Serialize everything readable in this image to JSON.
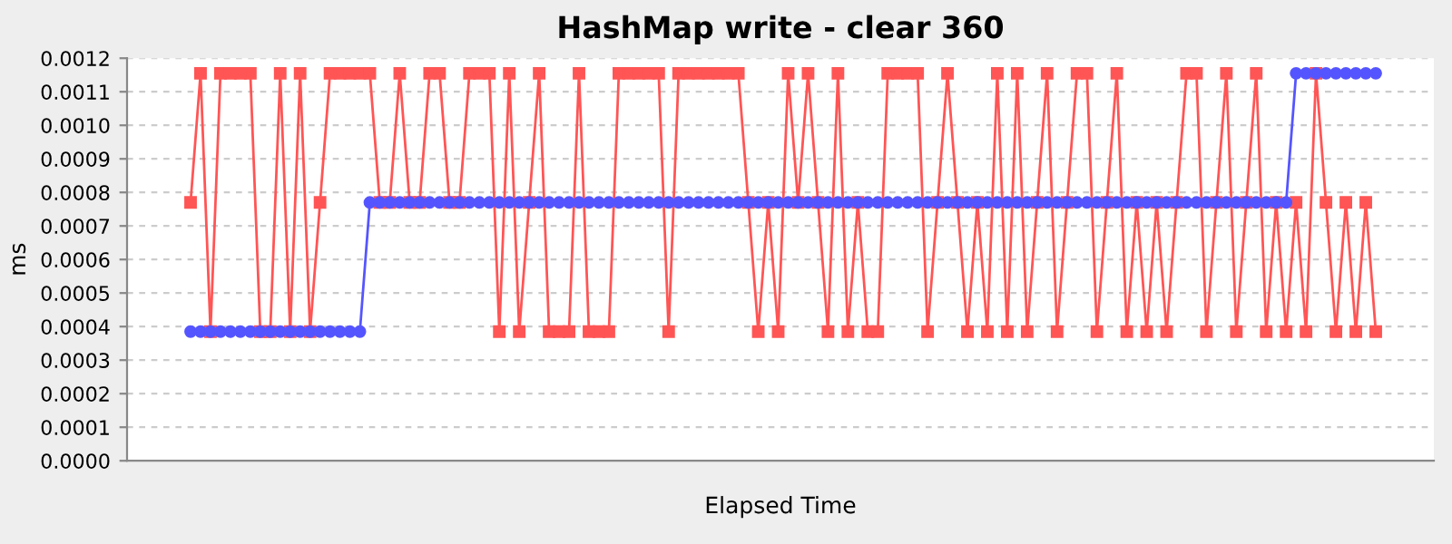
{
  "chart_data": {
    "type": "line",
    "title": "HashMap write - clear 360",
    "xlabel": "Elapsed Time",
    "ylabel": "ms",
    "categories": [
      null,
      null,
      null,
      null,
      null,
      null,
      null,
      null,
      null,
      null,
      null,
      null,
      null,
      null,
      null,
      null,
      null,
      null,
      null,
      null,
      null,
      null,
      null,
      null,
      null,
      null,
      null,
      null,
      null,
      null,
      null,
      null,
      null,
      null,
      null,
      null,
      null,
      null,
      null,
      null,
      null,
      null,
      null,
      null,
      null,
      null,
      null,
      null,
      null,
      null,
      null,
      null,
      null,
      null,
      null,
      null,
      null,
      null,
      null,
      null,
      null,
      null,
      null,
      null,
      null,
      null,
      null,
      null,
      null,
      null,
      null,
      null,
      null,
      null,
      null,
      null,
      null,
      null,
      null,
      null,
      null,
      null,
      null,
      null,
      null,
      null,
      null,
      null,
      null,
      null,
      null,
      null,
      null,
      null,
      null,
      null,
      null,
      null,
      null,
      null,
      null,
      null,
      null,
      null,
      null,
      null,
      null,
      null,
      null,
      null,
      null,
      null,
      null,
      null,
      null,
      null,
      null,
      null,
      null,
      null
    ],
    "ylim": [
      0,
      0.0012
    ],
    "yticks": [
      {
        "value": 0,
        "label": "0.0000"
      },
      {
        "value": 0.0001,
        "label": "0.0001"
      },
      {
        "value": 0.0002,
        "label": "0.0002"
      },
      {
        "value": 0.0003,
        "label": "0.0003"
      },
      {
        "value": 0.0004,
        "label": "0.0004"
      },
      {
        "value": 0.0005,
        "label": "0.0005"
      },
      {
        "value": 0.0006,
        "label": "0.0006"
      },
      {
        "value": 0.0007,
        "label": "0.0007"
      },
      {
        "value": 0.0008,
        "label": "0.0008"
      },
      {
        "value": 0.0009,
        "label": "0.0009"
      },
      {
        "value": 0.001,
        "label": "0.0010"
      },
      {
        "value": 0.0011,
        "label": "0.0011"
      },
      {
        "value": 0.0012,
        "label": "0.0012"
      }
    ],
    "grid": "y",
    "tick_labels": "y",
    "line_style": "solid",
    "series": [
      {
        "color": "#ff5555",
        "marker": "square",
        "values": [
          0.00077,
          0.001155,
          0.000385,
          0.001155,
          0.001155,
          0.001155,
          0.001155,
          0.000385,
          0.000385,
          0.001155,
          0.000385,
          0.001155,
          0.000385,
          0.00077,
          0.001155,
          0.001155,
          0.001155,
          0.001155,
          0.001155,
          0.00077,
          0.00077,
          0.001155,
          0.00077,
          0.00077,
          0.001155,
          0.001155,
          0.00077,
          0.00077,
          0.001155,
          0.001155,
          0.001155,
          0.000385,
          0.001155,
          0.000385,
          0.00077,
          0.001155,
          0.000385,
          0.000385,
          0.000385,
          0.001155,
          0.000385,
          0.000385,
          0.000385,
          0.001155,
          0.001155,
          0.001155,
          0.001155,
          0.001155,
          0.000385,
          0.001155,
          0.001155,
          0.001155,
          0.001155,
          0.001155,
          0.001155,
          0.001155,
          0.00077,
          0.000385,
          0.00077,
          0.000385,
          0.001155,
          0.00077,
          0.001155,
          0.00077,
          0.000385,
          0.001155,
          0.000385,
          0.00077,
          0.000385,
          0.000385,
          0.001155,
          0.001155,
          0.001155,
          0.001155,
          0.000385,
          0.00077,
          0.001155,
          0.00077,
          0.000385,
          0.00077,
          0.000385,
          0.001155,
          0.000385,
          0.001155,
          0.000385,
          0.00077,
          0.001155,
          0.000385,
          0.00077,
          0.001155,
          0.001155,
          0.000385,
          0.00077,
          0.001155,
          0.000385,
          0.00077,
          0.000385,
          0.00077,
          0.000385,
          0.00077,
          0.001155,
          0.001155,
          0.000385,
          0.00077,
          0.001155,
          0.000385,
          0.00077,
          0.001155,
          0.000385,
          0.00077,
          0.000385,
          0.00077,
          0.000385,
          0.001155,
          0.00077,
          0.000385,
          0.00077,
          0.000385,
          0.00077,
          0.000385
        ]
      },
      {
        "color": "#5555ff",
        "marker": "circle",
        "values": [
          0.000385,
          0.000385,
          0.000385,
          0.000385,
          0.000385,
          0.000385,
          0.000385,
          0.000385,
          0.000385,
          0.000385,
          0.000385,
          0.000385,
          0.000385,
          0.000385,
          0.000385,
          0.000385,
          0.000385,
          0.000385,
          0.00077,
          0.00077,
          0.00077,
          0.00077,
          0.00077,
          0.00077,
          0.00077,
          0.00077,
          0.00077,
          0.00077,
          0.00077,
          0.00077,
          0.00077,
          0.00077,
          0.00077,
          0.00077,
          0.00077,
          0.00077,
          0.00077,
          0.00077,
          0.00077,
          0.00077,
          0.00077,
          0.00077,
          0.00077,
          0.00077,
          0.00077,
          0.00077,
          0.00077,
          0.00077,
          0.00077,
          0.00077,
          0.00077,
          0.00077,
          0.00077,
          0.00077,
          0.00077,
          0.00077,
          0.00077,
          0.00077,
          0.00077,
          0.00077,
          0.00077,
          0.00077,
          0.00077,
          0.00077,
          0.00077,
          0.00077,
          0.00077,
          0.00077,
          0.00077,
          0.00077,
          0.00077,
          0.00077,
          0.00077,
          0.00077,
          0.00077,
          0.00077,
          0.00077,
          0.00077,
          0.00077,
          0.00077,
          0.00077,
          0.00077,
          0.00077,
          0.00077,
          0.00077,
          0.00077,
          0.00077,
          0.00077,
          0.00077,
          0.00077,
          0.00077,
          0.00077,
          0.00077,
          0.00077,
          0.00077,
          0.00077,
          0.00077,
          0.00077,
          0.00077,
          0.00077,
          0.00077,
          0.00077,
          0.00077,
          0.00077,
          0.00077,
          0.00077,
          0.00077,
          0.00077,
          0.00077,
          0.00077,
          0.00077,
          0.001155,
          0.001155,
          0.001155,
          0.001155,
          0.001155,
          0.001155,
          0.001155,
          0.001155,
          0.001155
        ]
      }
    ]
  }
}
